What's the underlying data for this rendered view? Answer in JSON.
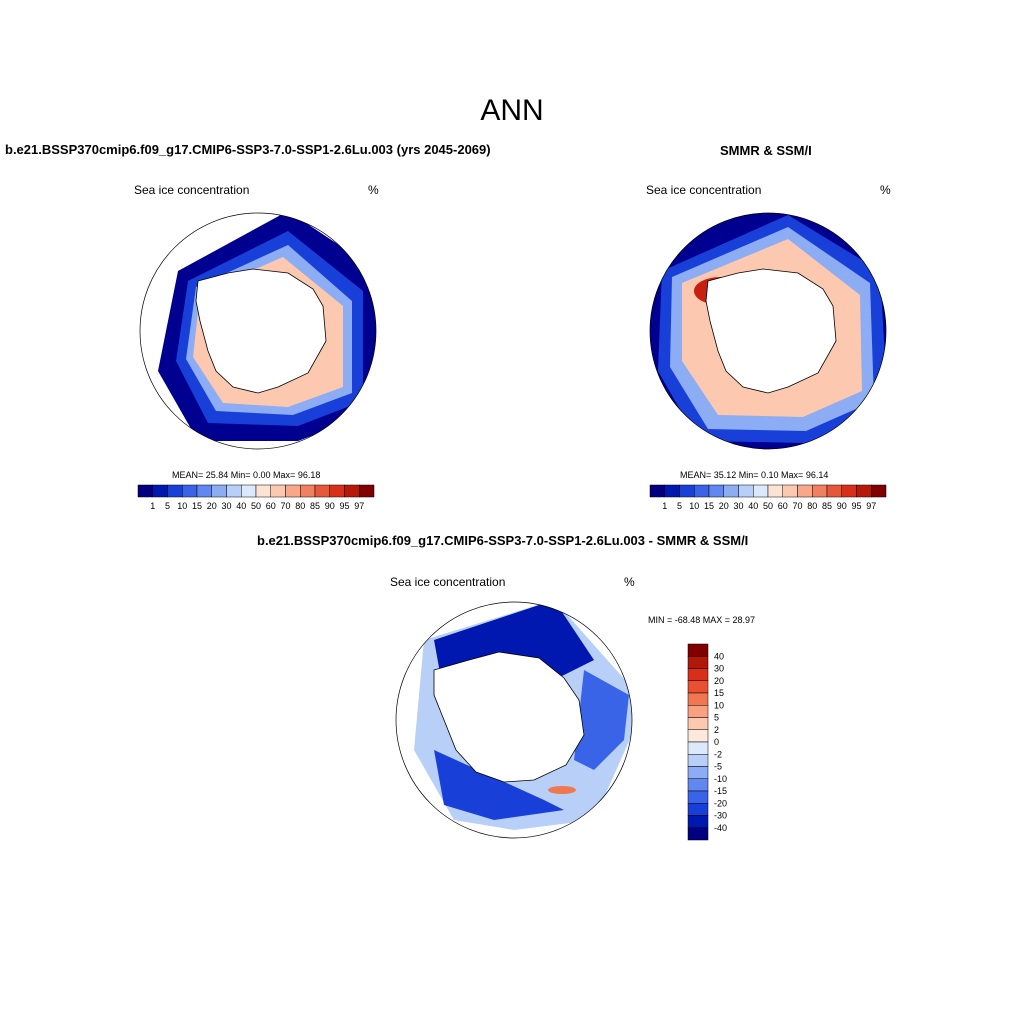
{
  "figure": {
    "title": "ANN"
  },
  "panels": [
    {
      "title": "b.e21.BSSP370cmip6.f09_g17.CMIP6-SSP3-7.0-SSP1-2.6Lu.003 (yrs 2045-2069)",
      "left_label": "Sea ice concentration",
      "right_label": "%",
      "stats": "MEAN=  25.84  Min=   0.00  Max=  96.18"
    },
    {
      "title": "SMMR & SSM/I",
      "left_label": "Sea ice concentration",
      "right_label": "%",
      "stats": "MEAN=  35.12  Min=   0.10  Max=  96.14"
    },
    {
      "title": "b.e21.BSSP370cmip6.f09_g17.CMIP6-SSP3-7.0-SSP1-2.6Lu.003 - SMMR & SSM/I",
      "left_label": "Sea ice concentration",
      "right_label": "%",
      "stats": "MIN = -68.48 MAX =  28.97"
    }
  ],
  "colorbar_conc": {
    "labels": [
      "1",
      "5",
      "10",
      "15",
      "20",
      "30",
      "40",
      "50",
      "60",
      "70",
      "80",
      "85",
      "90",
      "95",
      "97"
    ],
    "colors": [
      "#000080",
      "#0018b0",
      "#1840d8",
      "#3a64e8",
      "#6088f0",
      "#8cacf4",
      "#b8d0f8",
      "#dce8fc",
      "#fce4d4",
      "#fcc8b0",
      "#f8a888",
      "#f08060",
      "#e85838",
      "#d83018",
      "#b81808",
      "#800000"
    ]
  },
  "colorbar_diff": {
    "labels": [
      "40",
      "30",
      "20",
      "15",
      "10",
      "5",
      "2",
      "0",
      "-2",
      "-5",
      "-10",
      "-15",
      "-20",
      "-30",
      "-40"
    ],
    "colors": [
      "#800000",
      "#b01808",
      "#d83018",
      "#e85030",
      "#f07850",
      "#f8a080",
      "#fcc8b0",
      "#fce8dc",
      "#dce8fc",
      "#b8d0f8",
      "#8cacf4",
      "#6088f0",
      "#3a64e8",
      "#1840d8",
      "#0018b0",
      "#000080"
    ]
  },
  "chart_data": [
    {
      "type": "heatmap",
      "title": "b.e21.BSSP370cmip6.f09_g17.CMIP6-SSP3-7.0-SSP1-2.6Lu.003 (yrs 2045-2069)",
      "variable": "Sea ice concentration",
      "units": "%",
      "mean": 25.84,
      "min": 0.0,
      "max": 96.18,
      "levels": [
        1,
        5,
        10,
        15,
        20,
        30,
        40,
        50,
        60,
        70,
        80,
        85,
        90,
        95,
        97
      ]
    },
    {
      "type": "heatmap",
      "title": "SMMR & SSM/I",
      "variable": "Sea ice concentration",
      "units": "%",
      "mean": 35.12,
      "min": 0.1,
      "max": 96.14,
      "levels": [
        1,
        5,
        10,
        15,
        20,
        30,
        40,
        50,
        60,
        70,
        80,
        85,
        90,
        95,
        97
      ]
    },
    {
      "type": "heatmap",
      "title": "b.e21.BSSP370cmip6.f09_g17.CMIP6-SSP3-7.0-SSP1-2.6Lu.003 - SMMR & SSM/I",
      "variable": "Sea ice concentration",
      "units": "%",
      "min": -68.48,
      "max": 28.97,
      "levels": [
        40,
        30,
        20,
        15,
        10,
        5,
        2,
        0,
        -2,
        -5,
        -10,
        -15,
        -20,
        -30,
        -40
      ]
    }
  ]
}
